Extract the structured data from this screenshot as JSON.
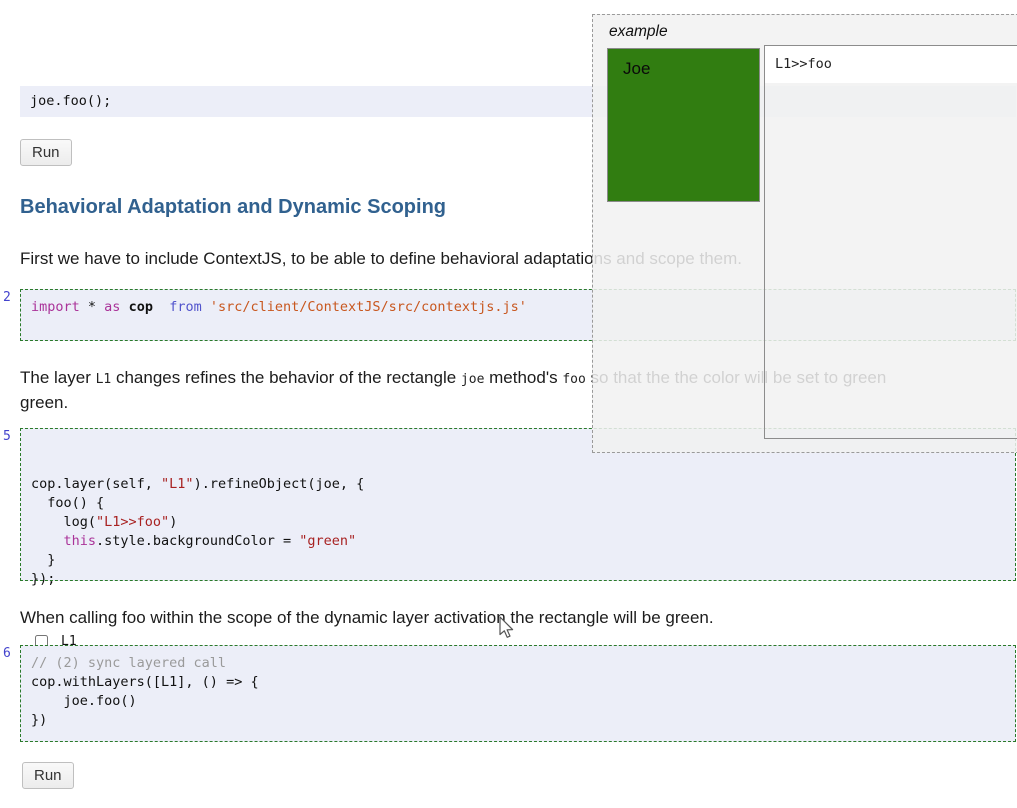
{
  "colors": {
    "accent_green_rect": "#317d11",
    "code_cell_bg": "#eceef8",
    "cell_border_green": "#2a7a2a",
    "heading_blue": "#31618f",
    "line_number_blue": "#4343cd"
  },
  "cell_top": {
    "lines": [
      [
        {
          "c": "d",
          "t": "joe.foo();"
        }
      ]
    ],
    "run_label": "Run"
  },
  "heading": {
    "title": "Behavioral Adaptation and Dynamic Scoping"
  },
  "intro": {
    "text": "First we have to include ContextJS, to be able to define behavioral adaptations and scope them."
  },
  "block_import": {
    "line_number": "2",
    "lines": [
      [
        {
          "c": "k",
          "t": "import"
        },
        {
          "c": "d",
          "t": " * "
        },
        {
          "c": "k",
          "t": "as"
        },
        {
          "c": "b",
          "t": " cop"
        },
        {
          "c": "d",
          "t": "  "
        },
        {
          "c": "m",
          "t": "from"
        },
        {
          "c": "o",
          "t": " 'src/client/ContextJS/src/contextjs.js'"
        }
      ]
    ]
  },
  "layer_paragraph": {
    "line1_parts": [
      {
        "t": "The layer "
      },
      {
        "t": "L1",
        "code": true
      },
      {
        "t": " changes refines the behavior of the rectangle "
      },
      {
        "t": "joe",
        "code": true
      },
      {
        "t": " method's "
      },
      {
        "t": "foo",
        "code": true
      },
      {
        "t": " so that the the color will be set to green"
      }
    ],
    "line2": "green."
  },
  "block_layer": {
    "line_number": "5",
    "lines": [
      [
        {
          "c": "d",
          "t": "cop.layer(self, "
        },
        {
          "c": "s",
          "t": "\"L1\""
        },
        {
          "c": "d",
          "t": ").refineObject(joe, {"
        }
      ],
      [
        {
          "c": "d",
          "t": "  foo() {"
        }
      ],
      [
        {
          "c": "d",
          "t": "    log("
        },
        {
          "c": "s",
          "t": "\"L1>>foo\""
        },
        {
          "c": "d",
          "t": ")"
        }
      ],
      [
        {
          "c": "d",
          "t": "    "
        },
        {
          "c": "k",
          "t": "this"
        },
        {
          "c": "d",
          "t": ".style.backgroundColor = "
        },
        {
          "c": "s",
          "t": "\"green\""
        }
      ],
      [
        {
          "c": "d",
          "t": "  }"
        }
      ],
      [
        {
          "c": "d",
          "t": "});"
        }
      ]
    ],
    "checkbox_label": "L1",
    "checkbox_checked": false
  },
  "calling_paragraph": {
    "text": "When calling foo within the scope of the dynamic layer activation the rectangle will be green."
  },
  "block_call": {
    "line_number": "6",
    "lines": [
      [
        {
          "c": "c",
          "t": "// (2) sync layered call"
        }
      ],
      [
        {
          "c": "d",
          "t": "cop.withLayers([L1], () => {"
        }
      ],
      [
        {
          "c": "d",
          "t": "    joe.foo()"
        }
      ],
      [
        {
          "c": "d",
          "t": "})"
        }
      ]
    ],
    "run_label": "Run"
  },
  "example_window": {
    "title": "example",
    "rect_label": "Joe",
    "rect_color": "#317d11",
    "log_entries": [
      "L1>>foo"
    ]
  }
}
